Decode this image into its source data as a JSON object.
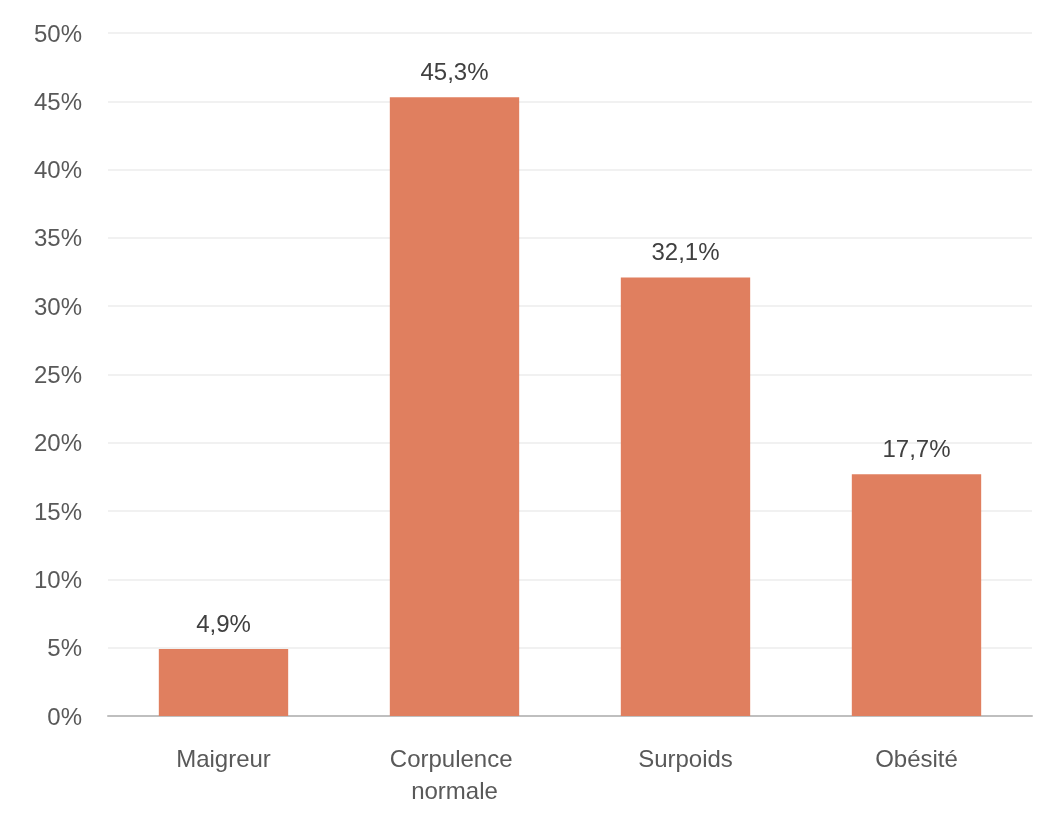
{
  "chart_data": {
    "type": "bar",
    "categories": [
      "Maigreur",
      "Corpulence normale",
      "Surpoids",
      "Obésité"
    ],
    "values": [
      4.9,
      45.3,
      32.1,
      17.7
    ],
    "value_labels": [
      "4,9%",
      "45,3%",
      "32,1%",
      "17,7%"
    ],
    "color": "#e07f5f",
    "ylim": [
      0,
      50
    ],
    "yticks": [
      {
        "value": 0,
        "label": "0%"
      },
      {
        "value": 5,
        "label": "5%"
      },
      {
        "value": 10,
        "label": "10%"
      },
      {
        "value": 15,
        "label": "15%"
      },
      {
        "value": 20,
        "label": "20%"
      },
      {
        "value": 25,
        "label": "25%"
      },
      {
        "value": 30,
        "label": "30%"
      },
      {
        "value": 35,
        "label": "35%"
      },
      {
        "value": 40,
        "label": "40%"
      },
      {
        "value": 45,
        "label": "45%"
      },
      {
        "value": 50,
        "label": "50%"
      }
    ],
    "grid": "y"
  }
}
